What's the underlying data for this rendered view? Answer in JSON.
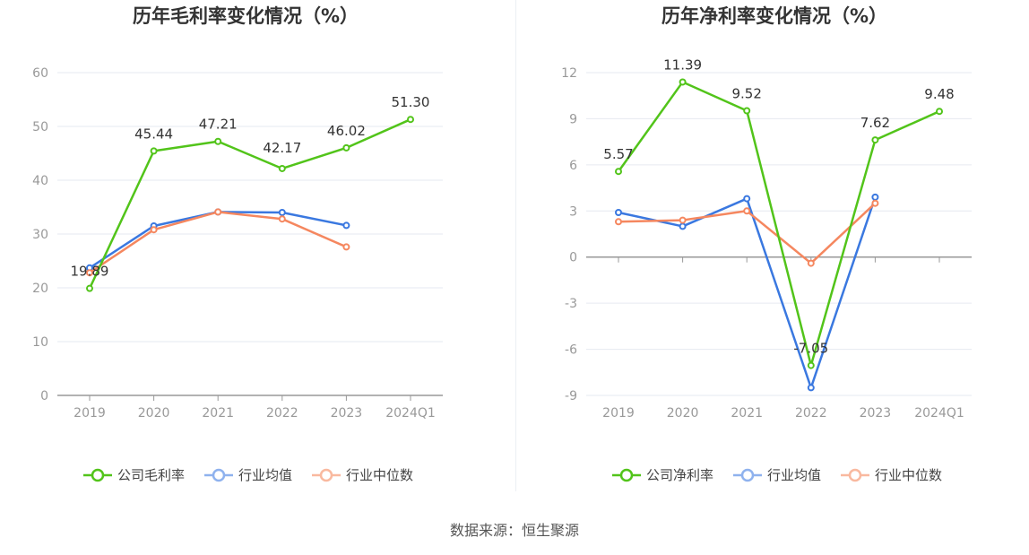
{
  "source": "数据来源：恒生聚源",
  "chart_data": [
    {
      "type": "line",
      "title": "历年毛利率变化情况（%）",
      "categories": [
        "2019",
        "2020",
        "2021",
        "2022",
        "2023",
        "2024Q1"
      ],
      "y_ticks": [
        "0",
        "10",
        "20",
        "30",
        "40",
        "50",
        "60"
      ],
      "ylim": [
        0,
        60
      ],
      "series": [
        {
          "name": "公司毛利率",
          "color": "#52c41a",
          "values": [
            19.89,
            45.44,
            47.21,
            42.17,
            46.02,
            51.3
          ],
          "labels": [
            "19.89",
            "45.44",
            "47.21",
            "42.17",
            "46.02",
            "51.30"
          ]
        },
        {
          "name": "行业均值",
          "color": "#3a78e0",
          "values": [
            23.7,
            31.5,
            34.1,
            34.0,
            31.6,
            null
          ]
        },
        {
          "name": "行业中位数",
          "color": "#f5875f",
          "values": [
            22.8,
            30.8,
            34.1,
            32.8,
            27.6,
            null
          ]
        }
      ],
      "legend": "bottom",
      "grid": true
    },
    {
      "type": "line",
      "title": "历年净利率变化情况（%）",
      "categories": [
        "2019",
        "2020",
        "2021",
        "2022",
        "2023",
        "2024Q1"
      ],
      "y_ticks": [
        "-9",
        "-6",
        "-3",
        "0",
        "3",
        "6",
        "9",
        "12"
      ],
      "ylim": [
        -9,
        12
      ],
      "series": [
        {
          "name": "公司净利率",
          "color": "#52c41a",
          "values": [
            5.57,
            11.39,
            9.52,
            -7.05,
            7.62,
            9.48
          ],
          "labels": [
            "5.57",
            "11.39",
            "9.52",
            "-7.05",
            "7.62",
            "9.48"
          ]
        },
        {
          "name": "行业均值",
          "color": "#3a78e0",
          "values": [
            2.9,
            2.0,
            3.8,
            -8.5,
            3.9,
            null
          ]
        },
        {
          "name": "行业中位数",
          "color": "#f5875f",
          "values": [
            2.3,
            2.4,
            3.0,
            -0.4,
            3.5,
            null
          ]
        }
      ],
      "legend": "bottom",
      "grid": true
    }
  ]
}
